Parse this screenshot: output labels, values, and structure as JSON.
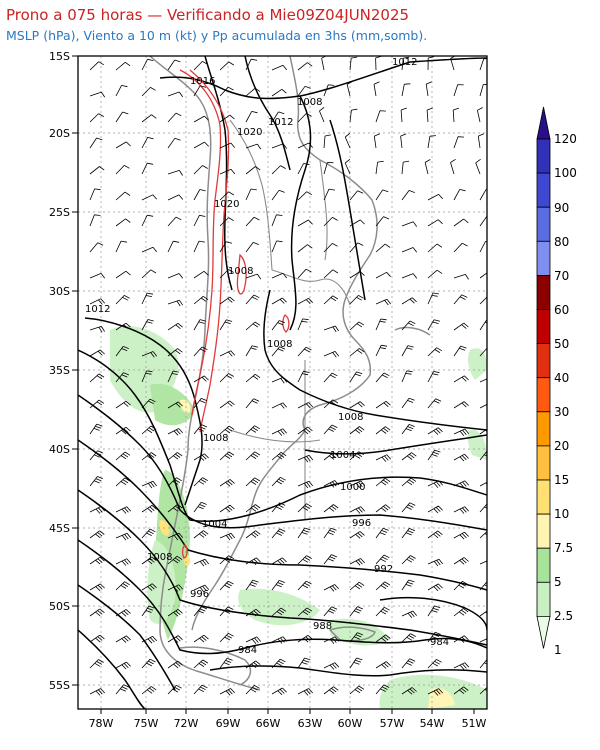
{
  "title": "Prono a 075 horas — Verificando a Mie09Z04JUN2025",
  "subtitle": "MSLP (hPa), Viento a 10 m (kt) y Pp acumulada en 3hs (mm,somb).",
  "colors": {
    "title": "#cc2222",
    "subtitle": "#2a78c2",
    "isobar": "#000000",
    "coast": "#8c8c8c",
    "high_precip_contour": "#e03a3a",
    "barb": "#000000"
  },
  "axes": {
    "lat_labels": [
      "15S",
      "20S",
      "25S",
      "30S",
      "35S",
      "40S",
      "45S",
      "50S",
      "55S"
    ],
    "lon_labels": [
      "78W",
      "75W",
      "72W",
      "69W",
      "66W",
      "63W",
      "60W",
      "57W",
      "54W",
      "51W"
    ]
  },
  "isobar_labels": [
    "1012",
    "1016",
    "1008",
    "1020",
    "1012",
    "1020",
    "1008",
    "1012",
    "1008",
    "1008",
    "1008",
    "1004",
    "1000",
    "996",
    "1004",
    "992",
    "1008",
    "996",
    "988",
    "984",
    "984"
  ],
  "colorbar": {
    "labels": [
      "120",
      "100",
      "90",
      "80",
      "70",
      "60",
      "50",
      "40",
      "30",
      "20",
      "15",
      "10",
      "7.5",
      "5",
      "2.5",
      "1"
    ],
    "colors": [
      "#2a0f8c",
      "#3030b8",
      "#3f48d2",
      "#5b6ce0",
      "#7f8ef0",
      "#8c0000",
      "#c00000",
      "#e03010",
      "#ff5a10",
      "#ff9900",
      "#ffc040",
      "#ffe070",
      "#fff4b0",
      "#a8e39a",
      "#c8f0c0",
      "#eafbe6"
    ]
  }
}
